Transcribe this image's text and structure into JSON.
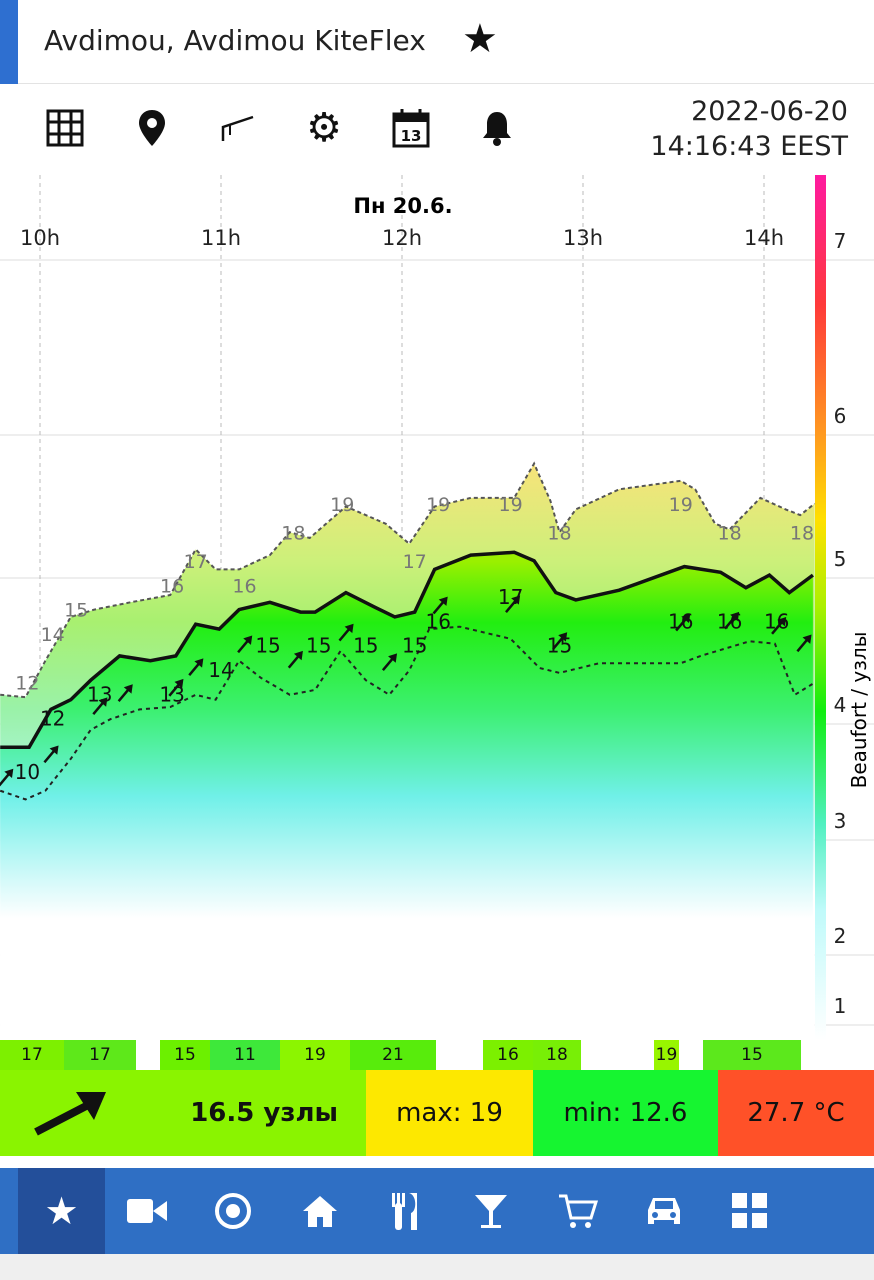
{
  "header": {
    "title": "Avdimou, Avdimou KiteFlex",
    "favorite_icon": "star-icon"
  },
  "toolbar": {
    "icons": [
      "grid-icon",
      "map-pin-icon",
      "slope-icon",
      "gear-icon",
      "calendar-icon",
      "bell-icon"
    ],
    "calendar_day": "13",
    "date": "2022-06-20",
    "time": "14:16:43 EEST"
  },
  "chart_data": {
    "type": "area",
    "day_label": "Пн 20.6.",
    "x_ticks": [
      {
        "h": 10,
        "label": "10h"
      },
      {
        "h": 11,
        "label": "11h"
      },
      {
        "h": 12,
        "label": "12h"
      },
      {
        "h": 13,
        "label": "13h"
      },
      {
        "h": 14,
        "label": "14h"
      }
    ],
    "y_axis_label": "Beaufort / узлы",
    "beaufort_ticks": [
      {
        "bf": "7",
        "kt": 28
      },
      {
        "bf": "6",
        "kt": 22
      },
      {
        "bf": "5",
        "kt": 17
      },
      {
        "bf": "4",
        "kt": 11
      },
      {
        "bf": "3",
        "kt": 7
      },
      {
        "bf": "2",
        "kt": 4
      },
      {
        "bf": "1",
        "kt": 1
      }
    ],
    "series": [
      {
        "name": "gust",
        "x": [
          9.78,
          9.92,
          10.03,
          10.17,
          10.3,
          10.5,
          10.72,
          10.86,
          10.97,
          11.1,
          11.27,
          11.38,
          11.49,
          11.69,
          11.91,
          12.04,
          12.18,
          12.38,
          12.62,
          12.73,
          12.82,
          12.87,
          12.96,
          13.2,
          13.54,
          13.62,
          13.73,
          13.81,
          13.98,
          14.12,
          14.2,
          14.28
        ],
        "y": [
          12.2,
          12.1,
          13.6,
          15.4,
          15.7,
          16.0,
          16.3,
          18.0,
          17.3,
          17.3,
          17.8,
          18.6,
          18.4,
          19.5,
          18.9,
          18.2,
          19.5,
          19.8,
          19.8,
          21.0,
          19.7,
          18.6,
          19.4,
          20.1,
          20.4,
          20.1,
          18.9,
          18.7,
          19.8,
          19.4,
          19.2,
          19.6
        ]
      },
      {
        "name": "average",
        "x": [
          9.78,
          9.94,
          10.06,
          10.17,
          10.28,
          10.44,
          10.61,
          10.75,
          10.86,
          10.99,
          11.1,
          11.27,
          11.44,
          11.52,
          11.69,
          11.85,
          11.96,
          12.07,
          12.18,
          12.38,
          12.62,
          12.73,
          12.85,
          12.96,
          13.2,
          13.56,
          13.76,
          13.9,
          14.03,
          14.14,
          14.27
        ],
        "y": [
          10.2,
          10.2,
          11.6,
          12.0,
          12.8,
          13.8,
          13.6,
          13.8,
          15.1,
          14.9,
          15.7,
          16.0,
          15.6,
          15.6,
          16.4,
          15.8,
          15.4,
          15.6,
          17.3,
          17.8,
          17.9,
          17.6,
          16.4,
          16.1,
          16.5,
          17.4,
          17.2,
          16.6,
          17.1,
          16.4,
          17.1
        ]
      },
      {
        "name": "lull",
        "x": [
          9.78,
          9.92,
          10.03,
          10.17,
          10.28,
          10.39,
          10.55,
          10.72,
          10.86,
          10.97,
          11.1,
          11.22,
          11.38,
          11.52,
          11.66,
          11.8,
          11.93,
          12.04,
          12.15,
          12.32,
          12.6,
          12.76,
          12.87,
          13.09,
          13.54,
          13.65,
          13.92,
          14.06,
          14.17,
          14.28
        ],
        "y": [
          8.7,
          8.4,
          8.7,
          9.8,
          10.8,
          11.2,
          11.6,
          11.7,
          12.2,
          12.0,
          13.6,
          12.9,
          12.2,
          12.4,
          14.0,
          12.8,
          12.2,
          13.2,
          14.9,
          15.0,
          14.5,
          13.3,
          13.1,
          13.5,
          13.5,
          13.8,
          14.4,
          14.3,
          12.2,
          12.7
        ]
      }
    ],
    "gust_labels": [
      {
        "h": 9.93,
        "v": "12"
      },
      {
        "h": 10.07,
        "v": "14"
      },
      {
        "h": 10.2,
        "v": "15"
      },
      {
        "h": 10.73,
        "v": "16"
      },
      {
        "h": 10.86,
        "v": "17"
      },
      {
        "h": 11.13,
        "v": "16"
      },
      {
        "h": 11.4,
        "v": "18"
      },
      {
        "h": 11.67,
        "v": "19"
      },
      {
        "h": 12.07,
        "v": "17"
      },
      {
        "h": 12.2,
        "v": "19"
      },
      {
        "h": 12.6,
        "v": "19"
      },
      {
        "h": 12.87,
        "v": "18"
      },
      {
        "h": 13.54,
        "v": "19"
      },
      {
        "h": 13.81,
        "v": "18"
      },
      {
        "h": 14.21,
        "v": "18"
      }
    ],
    "avg_labels": [
      {
        "h": 9.93,
        "v": "10"
      },
      {
        "h": 10.07,
        "v": "12"
      },
      {
        "h": 10.33,
        "v": "13"
      },
      {
        "h": 10.73,
        "v": "13"
      },
      {
        "h": 11.0,
        "v": "14"
      },
      {
        "h": 11.26,
        "v": "15"
      },
      {
        "h": 11.54,
        "v": "15"
      },
      {
        "h": 11.8,
        "v": "15"
      },
      {
        "h": 12.07,
        "v": "15"
      },
      {
        "h": 12.2,
        "v": "16"
      },
      {
        "h": 12.6,
        "v": "17"
      },
      {
        "h": 12.87,
        "v": "15"
      },
      {
        "h": 13.54,
        "v": "16"
      },
      {
        "h": 13.81,
        "v": "16"
      },
      {
        "h": 14.07,
        "v": "16"
      }
    ],
    "arrows_h": [
      9.81,
      10.06,
      10.33,
      10.47,
      10.75,
      10.86,
      11.13,
      11.41,
      11.69,
      11.93,
      12.21,
      12.61,
      12.87,
      13.55,
      13.82,
      14.08,
      14.22
    ]
  },
  "strip": [
    {
      "v": "17",
      "c": "#7df000"
    },
    {
      "v": "17",
      "c": "#5ee81a"
    },
    {
      "v": "",
      "c": "#fff"
    },
    {
      "v": "15",
      "c": "#6cf000"
    },
    {
      "v": "11",
      "c": "#3ee83a"
    },
    {
      "v": "19",
      "c": "#8cf500"
    },
    {
      "v": "21",
      "c": "#58ec0c"
    },
    {
      "v": "",
      "c": "#fff"
    },
    {
      "v": "16",
      "c": "#7cf000"
    },
    {
      "v": "18",
      "c": "#78ef06"
    },
    {
      "v": "",
      "c": "#fff"
    },
    {
      "v": "19",
      "c": "#98f500"
    },
    {
      "v": "",
      "c": "#fff"
    },
    {
      "v": "15",
      "c": "#5ce81c"
    }
  ],
  "summary": {
    "direction_icon": "wind-arrow-icon",
    "speed": "16.5 узлы",
    "max": "max: 19",
    "min": "min: 12.6",
    "temp": "27.7 °C",
    "colors": {
      "speed": "#8af400",
      "max": "#fde800",
      "min": "#16f530",
      "temp": "#ff5128"
    }
  },
  "nav": {
    "items": [
      "star-icon",
      "video-icon",
      "target-icon",
      "home-icon",
      "restaurant-icon",
      "cocktail-icon",
      "cart-icon",
      "car-icon",
      "apps-icon"
    ]
  }
}
